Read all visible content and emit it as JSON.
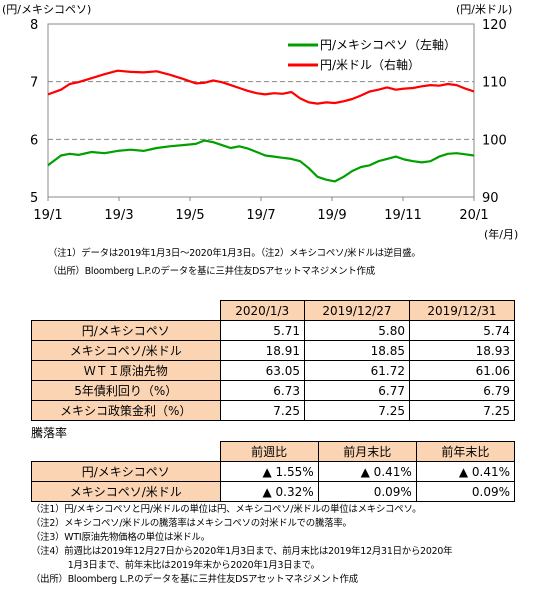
{
  "chart_data": {
    "type": "line",
    "left_axis_unit": "(円/メキシコペソ)",
    "right_axis_unit": "(円/米ドル)",
    "x_unit": "(年/月)",
    "x_tick_labels": [
      "19/1",
      "19/3",
      "19/5",
      "19/7",
      "19/9",
      "19/11",
      "20/1"
    ],
    "left_ticks": [
      "8",
      "7",
      "6",
      "5"
    ],
    "right_ticks": [
      "120",
      "110",
      "100",
      "90"
    ],
    "left_range": [
      5,
      8
    ],
    "right_range": [
      90,
      120
    ],
    "right_axis_inverted": false,
    "grid": "horizontal dashed",
    "legend_position": "top-right",
    "series": [
      {
        "name": "円/メキシコペソ（左軸）",
        "axis": "left",
        "color": "#00a000",
        "points": [
          [
            0,
            5.55
          ],
          [
            3,
            5.72
          ],
          [
            5,
            5.75
          ],
          [
            7,
            5.73
          ],
          [
            10,
            5.78
          ],
          [
            13,
            5.76
          ],
          [
            16,
            5.8
          ],
          [
            19,
            5.82
          ],
          [
            22,
            5.8
          ],
          [
            25,
            5.85
          ],
          [
            28,
            5.88
          ],
          [
            31,
            5.9
          ],
          [
            34,
            5.92
          ],
          [
            36,
            5.98
          ],
          [
            38,
            5.95
          ],
          [
            40,
            5.9
          ],
          [
            42,
            5.85
          ],
          [
            44,
            5.88
          ],
          [
            46,
            5.84
          ],
          [
            48,
            5.78
          ],
          [
            50,
            5.72
          ],
          [
            52,
            5.7
          ],
          [
            54,
            5.68
          ],
          [
            56,
            5.66
          ],
          [
            58,
            5.62
          ],
          [
            60,
            5.5
          ],
          [
            62,
            5.35
          ],
          [
            64,
            5.3
          ],
          [
            66,
            5.27
          ],
          [
            68,
            5.35
          ],
          [
            70,
            5.45
          ],
          [
            72,
            5.52
          ],
          [
            74,
            5.55
          ],
          [
            76,
            5.62
          ],
          [
            78,
            5.66
          ],
          [
            80,
            5.7
          ],
          [
            82,
            5.65
          ],
          [
            84,
            5.62
          ],
          [
            86,
            5.6
          ],
          [
            88,
            5.62
          ],
          [
            90,
            5.7
          ],
          [
            92,
            5.75
          ],
          [
            94,
            5.76
          ],
          [
            96,
            5.74
          ],
          [
            98,
            5.72
          ]
        ]
      },
      {
        "name": "円/米ドル（右軸）",
        "axis": "right",
        "color": "#ff0000",
        "points": [
          [
            0,
            107.8
          ],
          [
            3,
            108.6
          ],
          [
            5,
            109.6
          ],
          [
            7,
            109.9
          ],
          [
            10,
            110.6
          ],
          [
            13,
            111.3
          ],
          [
            16,
            111.9
          ],
          [
            19,
            111.7
          ],
          [
            22,
            111.6
          ],
          [
            25,
            111.8
          ],
          [
            28,
            111.2
          ],
          [
            31,
            110.5
          ],
          [
            34,
            109.7
          ],
          [
            36,
            109.8
          ],
          [
            38,
            110.2
          ],
          [
            40,
            109.9
          ],
          [
            42,
            109.4
          ],
          [
            44,
            108.9
          ],
          [
            46,
            108.4
          ],
          [
            48,
            108.0
          ],
          [
            50,
            107.8
          ],
          [
            52,
            108.0
          ],
          [
            54,
            107.9
          ],
          [
            56,
            108.2
          ],
          [
            58,
            107.1
          ],
          [
            60,
            106.4
          ],
          [
            62,
            106.2
          ],
          [
            64,
            106.4
          ],
          [
            66,
            106.3
          ],
          [
            68,
            106.6
          ],
          [
            70,
            107.0
          ],
          [
            72,
            107.6
          ],
          [
            74,
            108.3
          ],
          [
            76,
            108.6
          ],
          [
            78,
            109.0
          ],
          [
            80,
            108.6
          ],
          [
            82,
            108.8
          ],
          [
            84,
            108.9
          ],
          [
            86,
            109.2
          ],
          [
            88,
            109.4
          ],
          [
            90,
            109.3
          ],
          [
            92,
            109.6
          ],
          [
            94,
            109.4
          ],
          [
            96,
            108.8
          ],
          [
            98,
            108.3
          ]
        ]
      }
    ]
  },
  "notes1": [
    "（注1）データは2019年1月3日～2020年1月3日。（注2）メキシコペソ/米ドルは逆目盛。",
    "（出所）Bloomberg L.P.のデータを基に三井住友DSアセットマネジメント作成"
  ],
  "table1": {
    "headers": [
      "2020/1/3",
      "2019/12/27",
      "2019/12/31"
    ],
    "rows": [
      {
        "label": "円/メキシコペソ",
        "values": [
          "5.71",
          "5.80",
          "5.74"
        ]
      },
      {
        "label": "メキシコペソ/米ドル",
        "values": [
          "18.91",
          "18.85",
          "18.93"
        ]
      },
      {
        "label": "ＷＴＩ原油先物",
        "values": [
          "63.05",
          "61.72",
          "61.06"
        ]
      },
      {
        "label": "5年債利回り（%）",
        "values": [
          "6.73",
          "6.77",
          "6.79"
        ]
      },
      {
        "label": "メキシコ政策金利（%）",
        "values": [
          "7.25",
          "7.25",
          "7.25"
        ]
      }
    ]
  },
  "section2_label": "騰落率",
  "table2": {
    "headers": [
      "前週比",
      "前月末比",
      "前年末比"
    ],
    "rows": [
      {
        "label": "円/メキシコペソ",
        "values": [
          "▲ 1.55%",
          "▲ 0.41%",
          "▲ 0.41%"
        ]
      },
      {
        "label": "メキシコペソ/米ドル",
        "values": [
          "▲ 0.32%",
          "0.09%",
          "0.09%"
        ]
      }
    ]
  },
  "notes2": [
    "（注1）円/メキシコペソと円/米ドルの単位は円、メキシコペソ/米ドルの単位はメキシコペソ。",
    "（注2）メキシコペソ/米ドルの騰落率はメキシコペソの対米ドルでの騰落率。",
    "（注3）WTI原油先物価格の単位は米ドル。",
    "（注4）前週比は2019年12月27日から2020年1月3日まで、前月末比は2019年12月31日から2020年",
    "　　　　1月3日まで、前年末比は2019年末から2020年1月3日まで。",
    "（出所）Bloomberg L.P.のデータを基に三井住友DSアセットマネジメント作成"
  ]
}
